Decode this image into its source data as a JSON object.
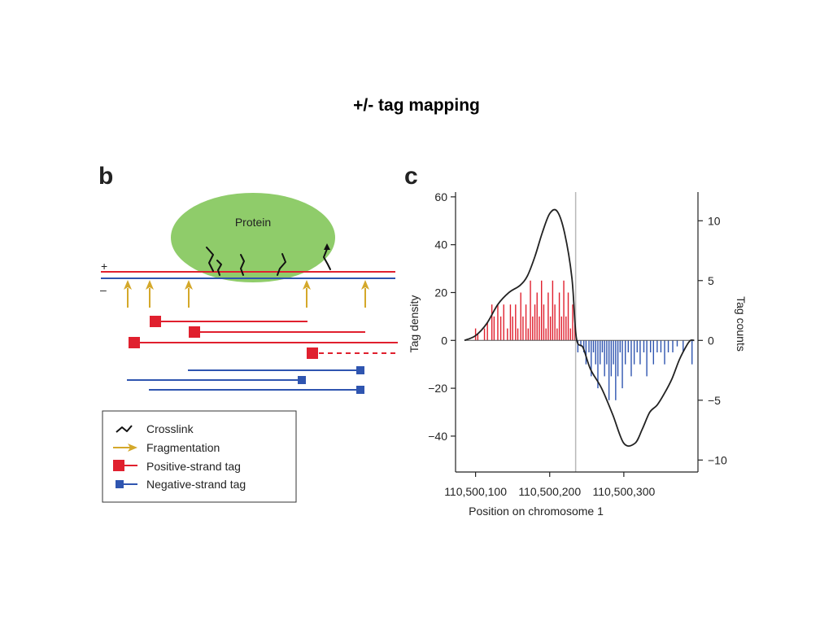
{
  "slide": {
    "title": "+/- tag mapping"
  },
  "panel_b": {
    "letter": "b",
    "protein_label": "Protein",
    "strand_plus": "+",
    "strand_minus": "–",
    "legend": {
      "crosslink": "Crosslink",
      "fragmentation": "Fragmentation",
      "positive_tag": "Positive-strand tag",
      "negative_tag": "Negative-strand tag"
    },
    "colors": {
      "positive": "#e0202e",
      "negative": "#2f55b0",
      "fragmentation": "#d4a82a",
      "protein": "#8fcc6a",
      "crosslink": "#111111"
    }
  },
  "panel_c": {
    "letter": "c"
  },
  "chart_data": {
    "type": "line",
    "xlabel": "Position on chromosome 1",
    "ylabel": "Tag density",
    "y2label": "Tag counts",
    "x_ticks": [
      110500100,
      110500200,
      110500300
    ],
    "x_tick_labels": [
      "110,500,100",
      "110,500,200",
      "110,500,300"
    ],
    "xlim": [
      110500073,
      110500400
    ],
    "ylim": [
      -55,
      62
    ],
    "y_ticks": [
      60,
      40,
      20,
      0,
      -20,
      -40
    ],
    "y_tick_labels": [
      "60",
      "40",
      "20",
      "0",
      "−20",
      "−40"
    ],
    "y2lim": [
      -11,
      12.4
    ],
    "y2_ticks": [
      10,
      5,
      0,
      -5,
      -10
    ],
    "y2_tick_labels": [
      "10",
      "5",
      "0",
      "−5",
      "−10"
    ],
    "vline_x": 110500235,
    "series": [
      {
        "type": "line",
        "axis": "left",
        "x": [
          110500085,
          110500100,
          110500115,
          110500130,
          110500145,
          110500160,
          110500170,
          110500180,
          110500190,
          110500200,
          110500210,
          110500220,
          110500230,
          110500236,
          110500245,
          110500255,
          110500270,
          110500285,
          110500300,
          110500315,
          110500325,
          110500335,
          110500345,
          110500355,
          110500365,
          110500375,
          110500385,
          110500390,
          110500395
        ],
        "y": [
          0,
          2,
          7,
          15,
          20,
          23,
          27,
          35,
          45,
          53,
          54,
          45,
          26,
          1,
          -3,
          -12,
          -20,
          -31,
          -43,
          -43,
          -37,
          -30,
          -27,
          -22,
          -16,
          -8,
          -2,
          0,
          0
        ]
      },
      {
        "type": "bar",
        "axis": "right",
        "name_color": "#e0202e",
        "x": [
          110500100,
          110500103,
          110500112,
          110500116,
          110500122,
          110500125,
          110500130,
          110500134,
          110500138,
          110500143,
          110500147,
          110500150,
          110500154,
          110500157,
          110500161,
          110500164,
          110500168,
          110500171,
          110500174,
          110500177,
          110500180,
          110500183,
          110500186,
          110500189,
          110500192,
          110500195,
          110500198,
          110500201,
          110500204,
          110500207,
          110500210,
          110500213,
          110500216,
          110500219,
          110500222,
          110500225,
          110500228,
          110500231,
          110500234
        ],
        "y": [
          1,
          0.5,
          1,
          1.5,
          3,
          2,
          3,
          2,
          3,
          1,
          3,
          2,
          3,
          1,
          4,
          2,
          3,
          1,
          5,
          2,
          3,
          4,
          2,
          5,
          3,
          1,
          4,
          2,
          5,
          3,
          1,
          4,
          2,
          5,
          2,
          4,
          1,
          3,
          2
        ]
      },
      {
        "type": "bar",
        "axis": "right",
        "name_color": "#2f55b0",
        "x": [
          110500238,
          110500242,
          110500246,
          110500249,
          110500253,
          110500256,
          110500259,
          110500262,
          110500265,
          110500268,
          110500271,
          110500274,
          110500277,
          110500280,
          110500283,
          110500286,
          110500289,
          110500292,
          110500295,
          110500298,
          110500302,
          110500306,
          110500310,
          110500314,
          110500318,
          110500322,
          110500327,
          110500331,
          110500336,
          110500340,
          110500345,
          110500350,
          110500355,
          110500360,
          110500366,
          110500372,
          110500380,
          110500392
        ],
        "y": [
          -1,
          -0.5,
          -1,
          -2,
          -1,
          -3,
          -1,
          -2,
          -4,
          -2,
          -1,
          -3,
          -2,
          -5,
          -3,
          -2,
          -5,
          -3,
          -1,
          -4,
          -2,
          -1,
          -3,
          -2,
          -1,
          -2,
          -1,
          -3,
          -1,
          -2,
          -1,
          -1,
          -2,
          -1,
          -1,
          -0.5,
          -1,
          -2
        ]
      }
    ]
  }
}
